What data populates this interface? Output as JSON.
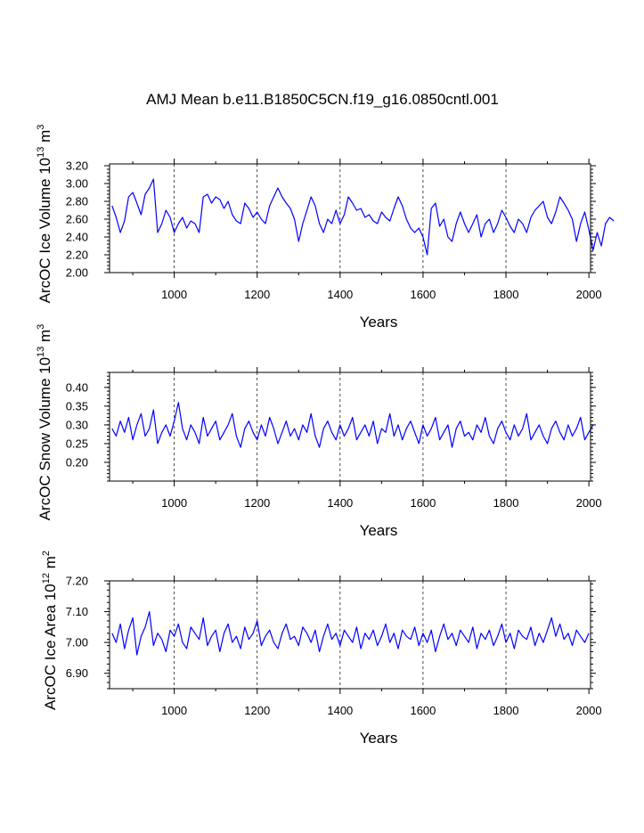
{
  "figure_title": "AMJ Mean b.e11.B1850C5CN.f19_g16.0850cntl.001",
  "chart_data": [
    {
      "type": "line",
      "ylabel": {
        "main": "ArcOC Ice Volume 10",
        "exp1": "13",
        "unit": " m",
        "exp2": "3"
      },
      "xlabel": "Years",
      "xlim": [
        844,
        2004
      ],
      "ylim": [
        2.0,
        3.22
      ],
      "yticks": [
        "2.00",
        "2.20",
        "2.40",
        "2.60",
        "2.80",
        "3.00",
        "3.20"
      ],
      "xticks": [
        "1000",
        "1200",
        "1400",
        "1600",
        "1800",
        "2000"
      ],
      "grid_lines_x": [
        1000,
        1200,
        1400,
        1600,
        1800
      ],
      "color": "#0000ff",
      "series": {
        "name": "ArcOC Ice Volume",
        "x_start": 850,
        "x_step": 10,
        "values": [
          2.75,
          2.62,
          2.45,
          2.58,
          2.85,
          2.9,
          2.78,
          2.65,
          2.88,
          2.95,
          3.05,
          2.45,
          2.55,
          2.7,
          2.62,
          2.45,
          2.55,
          2.62,
          2.5,
          2.58,
          2.55,
          2.45,
          2.85,
          2.88,
          2.78,
          2.85,
          2.82,
          2.72,
          2.8,
          2.65,
          2.58,
          2.55,
          2.78,
          2.72,
          2.62,
          2.68,
          2.6,
          2.55,
          2.75,
          2.85,
          2.95,
          2.85,
          2.78,
          2.72,
          2.6,
          2.35,
          2.55,
          2.7,
          2.85,
          2.75,
          2.55,
          2.45,
          2.6,
          2.55,
          2.7,
          2.55,
          2.65,
          2.85,
          2.78,
          2.7,
          2.72,
          2.62,
          2.65,
          2.58,
          2.55,
          2.68,
          2.62,
          2.58,
          2.72,
          2.85,
          2.75,
          2.6,
          2.5,
          2.45,
          2.5,
          2.4,
          2.2,
          2.72,
          2.78,
          2.52,
          2.6,
          2.4,
          2.35,
          2.55,
          2.68,
          2.55,
          2.45,
          2.55,
          2.65,
          2.4,
          2.55,
          2.6,
          2.45,
          2.55,
          2.7,
          2.62,
          2.52,
          2.45,
          2.6,
          2.55,
          2.45,
          2.62,
          2.7,
          2.75,
          2.8,
          2.62,
          2.55,
          2.68,
          2.85,
          2.78,
          2.7,
          2.6,
          2.35,
          2.55,
          2.68,
          2.48,
          2.25,
          2.45,
          2.3,
          2.55,
          2.62,
          2.58
        ]
      }
    },
    {
      "type": "line",
      "ylabel": {
        "main": "ArcOC Snow Volume 10",
        "exp1": "13",
        "unit": " m",
        "exp2": "3"
      },
      "xlabel": "Years",
      "xlim": [
        844,
        2004
      ],
      "ylim": [
        0.15,
        0.44
      ],
      "yticks": [
        "0.20",
        "0.25",
        "0.30",
        "0.35",
        "0.40"
      ],
      "xticks": [
        "1000",
        "1200",
        "1400",
        "1600",
        "1800",
        "2000"
      ],
      "grid_lines_x": [
        1000,
        1200,
        1400,
        1600,
        1800
      ],
      "color": "#0000ff",
      "series": {
        "name": "ArcOC Snow Volume",
        "x_start": 850,
        "x_step": 10,
        "values": [
          0.29,
          0.27,
          0.31,
          0.28,
          0.32,
          0.26,
          0.3,
          0.33,
          0.27,
          0.29,
          0.34,
          0.25,
          0.28,
          0.3,
          0.27,
          0.31,
          0.36,
          0.29,
          0.26,
          0.3,
          0.28,
          0.25,
          0.32,
          0.27,
          0.29,
          0.31,
          0.26,
          0.28,
          0.3,
          0.33,
          0.27,
          0.24,
          0.29,
          0.31,
          0.28,
          0.26,
          0.3,
          0.27,
          0.32,
          0.29,
          0.25,
          0.28,
          0.31,
          0.27,
          0.29,
          0.26,
          0.3,
          0.28,
          0.33,
          0.27,
          0.24,
          0.29,
          0.31,
          0.28,
          0.26,
          0.3,
          0.27,
          0.29,
          0.32,
          0.26,
          0.28,
          0.3,
          0.27,
          0.31,
          0.25,
          0.29,
          0.28,
          0.33,
          0.27,
          0.3,
          0.26,
          0.29,
          0.31,
          0.28,
          0.25,
          0.3,
          0.27,
          0.29,
          0.32,
          0.26,
          0.28,
          0.3,
          0.24,
          0.29,
          0.31,
          0.27,
          0.28,
          0.26,
          0.3,
          0.28,
          0.32,
          0.27,
          0.25,
          0.29,
          0.31,
          0.28,
          0.26,
          0.3,
          0.27,
          0.29,
          0.33,
          0.26,
          0.28,
          0.3,
          0.27,
          0.25,
          0.29,
          0.31,
          0.28,
          0.26,
          0.3,
          0.27,
          0.29,
          0.32,
          0.26,
          0.28,
          0.3
        ]
      }
    },
    {
      "type": "line",
      "ylabel": {
        "main": "ArcOC Ice Area 10",
        "exp1": "12",
        "unit": " m",
        "exp2": "2"
      },
      "xlabel": "Years",
      "xlim": [
        844,
        2004
      ],
      "ylim": [
        6.85,
        7.2
      ],
      "yticks": [
        "6.90",
        "7.00",
        "7.10",
        "7.20"
      ],
      "xticks": [
        "1000",
        "1200",
        "1400",
        "1600",
        "1800",
        "2000"
      ],
      "grid_lines_x": [
        1000,
        1200,
        1400,
        1600,
        1800
      ],
      "color": "#0000ff",
      "series": {
        "name": "ArcOC Ice Area",
        "x_start": 850,
        "x_step": 10,
        "values": [
          7.03,
          7.0,
          7.06,
          6.98,
          7.04,
          7.08,
          6.96,
          7.02,
          7.05,
          7.1,
          6.99,
          7.03,
          7.01,
          6.97,
          7.04,
          7.02,
          7.06,
          7.0,
          6.98,
          7.05,
          7.03,
          7.01,
          7.08,
          6.99,
          7.02,
          7.04,
          6.97,
          7.03,
          7.06,
          7.0,
          7.02,
          6.98,
          7.05,
          7.01,
          7.03,
          7.07,
          6.99,
          7.02,
          7.04,
          7.0,
          6.98,
          7.03,
          7.06,
          7.01,
          7.02,
          6.99,
          7.05,
          7.03,
          7.0,
          7.04,
          6.97,
          7.02,
          7.06,
          7.01,
          7.03,
          6.99,
          7.04,
          7.02,
          7.0,
          7.05,
          6.98,
          7.03,
          7.01,
          7.04,
          6.99,
          7.02,
          7.06,
          7.0,
          7.03,
          6.98,
          7.04,
          7.02,
          7.01,
          7.05,
          6.99,
          7.03,
          7.0,
          7.04,
          6.97,
          7.02,
          7.06,
          7.01,
          7.03,
          6.99,
          7.04,
          7.02,
          7.0,
          7.05,
          6.98,
          7.03,
          7.01,
          7.04,
          6.99,
          7.02,
          7.06,
          7.0,
          7.03,
          6.98,
          7.04,
          7.02,
          7.01,
          7.05,
          6.99,
          7.03,
          7.0,
          7.04,
          7.08,
          7.02,
          7.06,
          7.01,
          7.03,
          6.99,
          7.04,
          7.02,
          7.0,
          7.03
        ]
      }
    }
  ]
}
